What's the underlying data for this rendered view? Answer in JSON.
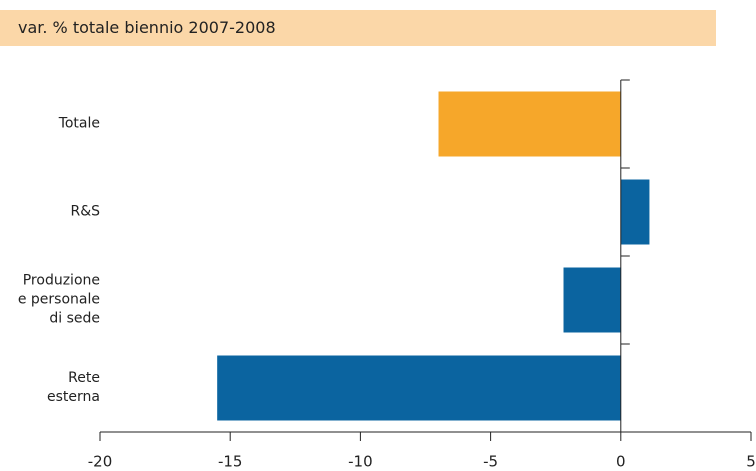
{
  "chart_data": {
    "type": "bar",
    "orientation": "horizontal",
    "title": "var. % totale biennio 2007-2008",
    "categories": [
      "Totale",
      "R&S",
      "Produzione\ne personale\ndi sede",
      "Rete\nesterna"
    ],
    "values": [
      -7.0,
      1.1,
      -2.2,
      -15.5
    ],
    "colors": [
      "#f6a72a",
      "#0b64a0",
      "#0b64a0",
      "#0b64a0"
    ],
    "xlim": [
      -20,
      5
    ],
    "xticks": [
      -20,
      -15,
      -10,
      -5,
      0,
      5
    ],
    "grid": false
  }
}
